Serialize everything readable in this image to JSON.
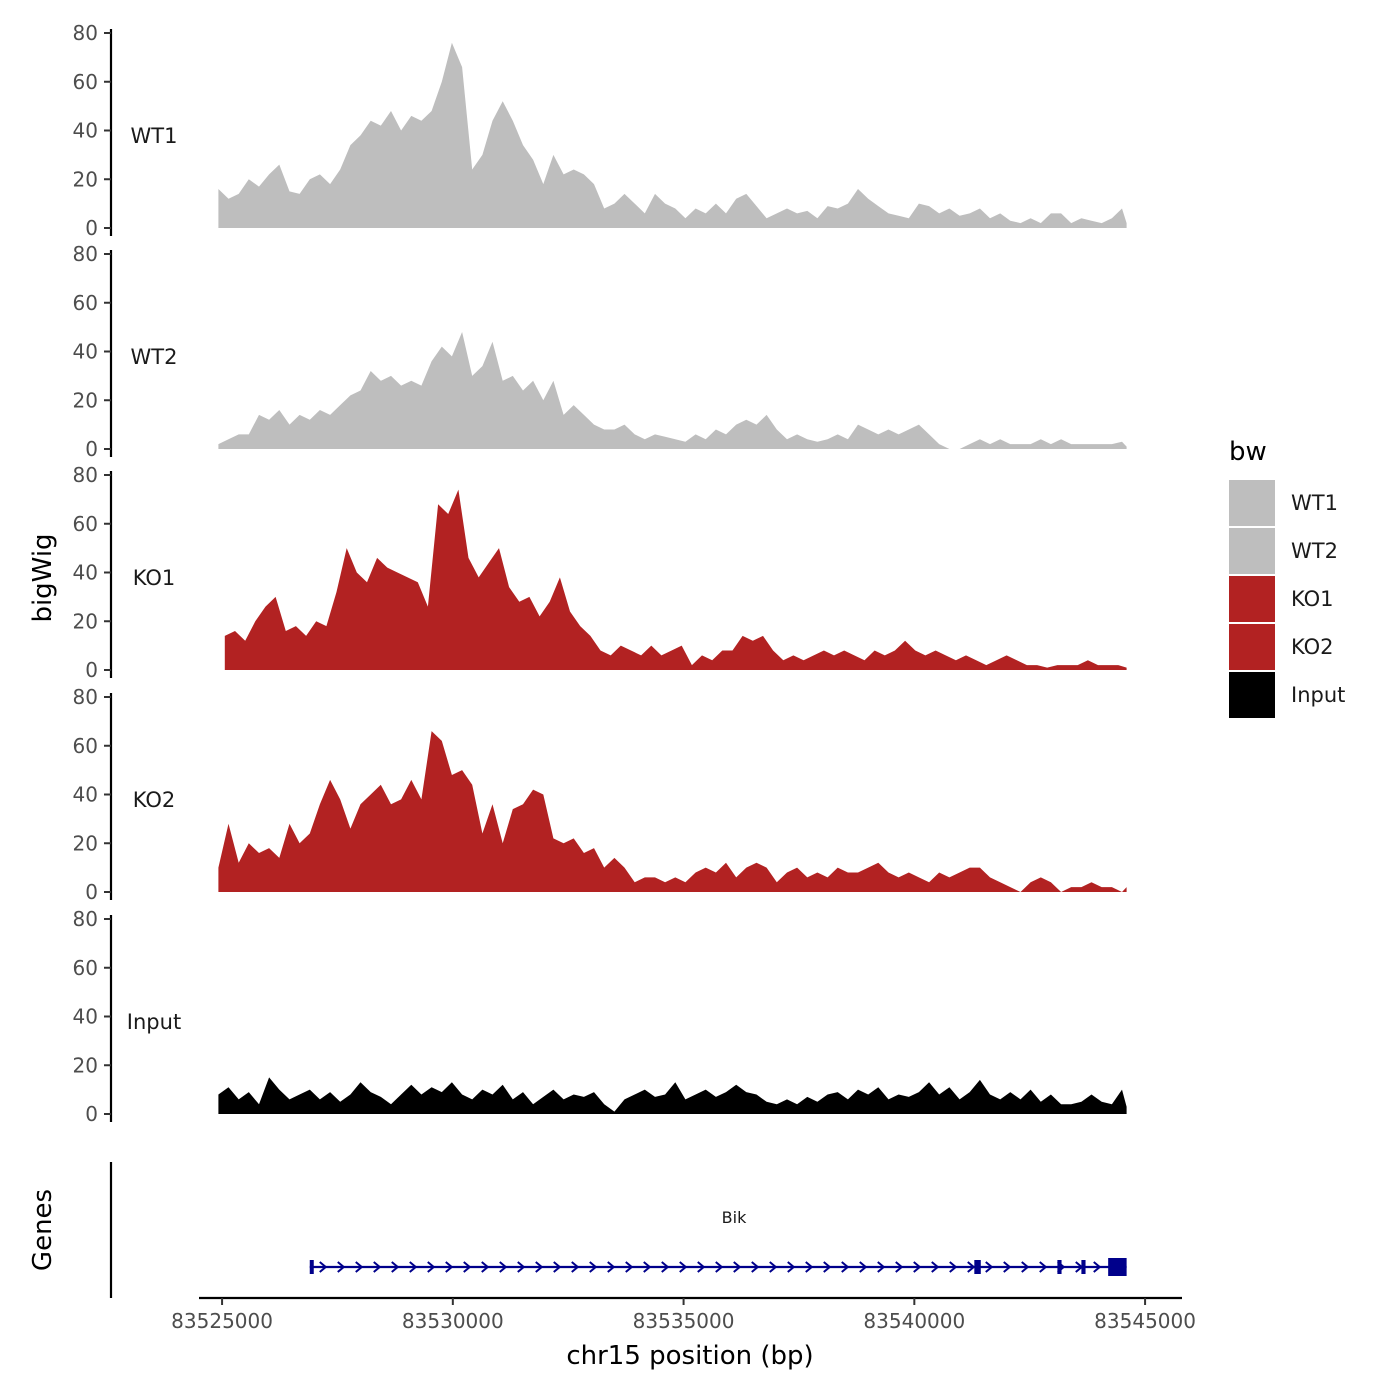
{
  "chart_data": {
    "type": "area",
    "title": "",
    "xlabel": "chr15 position (bp)",
    "ylabel": "bigWig",
    "genes_label": "Genes",
    "xlim": [
      83524500,
      83545800
    ],
    "ylim": [
      0,
      80
    ],
    "y_ticks": [
      "0",
      "20",
      "40",
      "60",
      "80"
    ],
    "x_ticks": [
      {
        "value": 83525000,
        "label": "83525000"
      },
      {
        "value": 83530000,
        "label": "83530000"
      },
      {
        "value": 83535000,
        "label": "83535000"
      },
      {
        "value": 83540000,
        "label": "83540000"
      },
      {
        "value": 83545000,
        "label": "83545000"
      }
    ],
    "legend": {
      "title": "bw",
      "position": "right",
      "entries": [
        {
          "label": "WT1",
          "color": "#bebebe"
        },
        {
          "label": "WT2",
          "color": "#bebebe"
        },
        {
          "label": "KO1",
          "color": "#b22222"
        },
        {
          "label": "KO2",
          "color": "#b22222"
        },
        {
          "label": "Input",
          "color": "#000000"
        }
      ]
    },
    "series": [
      {
        "name": "WT1",
        "color": "#bebebe",
        "x": [
          83524920,
          83525140,
          83525360,
          83525580,
          83525800,
          83526020,
          83526240,
          83526460,
          83526680,
          83526900,
          83527120,
          83527340,
          83527560,
          83527780,
          83528000,
          83528220,
          83528440,
          83528660,
          83528880,
          83529100,
          83529320,
          83529540,
          83529760,
          83529980,
          83530200,
          83530420,
          83530640,
          83530860,
          83531080,
          83531300,
          83531520,
          83531740,
          83531960,
          83532180,
          83532400,
          83532620,
          83532840,
          83533060,
          83533280,
          83533500,
          83533720,
          83533940,
          83534160,
          83534380,
          83534600,
          83534820,
          83535040,
          83535260,
          83535480,
          83535700,
          83535920,
          83536140,
          83536360,
          83536580,
          83536800,
          83537020,
          83537240,
          83537460,
          83537680,
          83537900,
          83538120,
          83538340,
          83538560,
          83538780,
          83539000,
          83539220,
          83539440,
          83539660,
          83539880,
          83540100,
          83540320,
          83540540,
          83540760,
          83540980,
          83541200,
          83541420,
          83541640,
          83541860,
          83542080,
          83542300,
          83542520,
          83542740,
          83542960,
          83543180,
          83543400,
          83543620,
          83543840,
          83544060,
          83544280,
          83544500,
          83544600
        ],
        "values": [
          16,
          12,
          14,
          20,
          17,
          22,
          26,
          15,
          14,
          20,
          22,
          18,
          24,
          34,
          38,
          44,
          42,
          48,
          40,
          46,
          44,
          48,
          60,
          76,
          66,
          24,
          30,
          44,
          52,
          44,
          34,
          28,
          18,
          30,
          22,
          24,
          22,
          18,
          8,
          10,
          14,
          10,
          6,
          14,
          10,
          8,
          4,
          8,
          6,
          10,
          6,
          12,
          14,
          9,
          4,
          6,
          8,
          6,
          7,
          4,
          9,
          8,
          10,
          16,
          12,
          9,
          6,
          5,
          4,
          10,
          9,
          6,
          8,
          5,
          6,
          8,
          4,
          6,
          3,
          2,
          4,
          2,
          6,
          6,
          2,
          4,
          3,
          2,
          4,
          8,
          2
        ]
      },
      {
        "name": "WT2",
        "color": "#bebebe",
        "x": [
          83524920,
          83525140,
          83525360,
          83525580,
          83525800,
          83526020,
          83526240,
          83526460,
          83526680,
          83526900,
          83527120,
          83527340,
          83527560,
          83527780,
          83528000,
          83528220,
          83528440,
          83528660,
          83528880,
          83529100,
          83529320,
          83529540,
          83529760,
          83529980,
          83530200,
          83530420,
          83530640,
          83530860,
          83531080,
          83531300,
          83531520,
          83531740,
          83531960,
          83532180,
          83532400,
          83532620,
          83532840,
          83533060,
          83533280,
          83533500,
          83533720,
          83533940,
          83534160,
          83534380,
          83534600,
          83534820,
          83535040,
          83535260,
          83535480,
          83535700,
          83535920,
          83536140,
          83536360,
          83536580,
          83536800,
          83537020,
          83537240,
          83537460,
          83537680,
          83537900,
          83538120,
          83538340,
          83538560,
          83538780,
          83539000,
          83539220,
          83539440,
          83539660,
          83539880,
          83540100,
          83540320,
          83540540,
          83540760,
          83540980,
          83541200,
          83541420,
          83541640,
          83541860,
          83542080,
          83542300,
          83542520,
          83542740,
          83542960,
          83543180,
          83543400,
          83543620,
          83543840,
          83544060,
          83544280,
          83544500,
          83544600
        ],
        "values": [
          2,
          4,
          6,
          6,
          14,
          12,
          16,
          10,
          14,
          12,
          16,
          14,
          18,
          22,
          24,
          32,
          28,
          30,
          26,
          28,
          26,
          36,
          42,
          38,
          48,
          30,
          34,
          44,
          28,
          30,
          24,
          28,
          20,
          28,
          14,
          18,
          14,
          10,
          8,
          8,
          10,
          6,
          4,
          6,
          5,
          4,
          3,
          6,
          4,
          8,
          6,
          10,
          12,
          10,
          14,
          8,
          4,
          6,
          4,
          3,
          4,
          6,
          4,
          10,
          8,
          6,
          8,
          6,
          8,
          10,
          6,
          2,
          0,
          0,
          2,
          4,
          2,
          4,
          2,
          2,
          2,
          4,
          2,
          4,
          2,
          2,
          2,
          2,
          2,
          3,
          1
        ]
      },
      {
        "name": "KO1",
        "color": "#b22222",
        "x": [
          83525060,
          83525280,
          83525500,
          83525720,
          83525940,
          83526160,
          83526380,
          83526600,
          83526820,
          83527040,
          83527260,
          83527480,
          83527700,
          83527920,
          83528140,
          83528360,
          83528580,
          83528800,
          83529020,
          83529240,
          83529460,
          83529680,
          83529900,
          83530120,
          83530340,
          83530560,
          83530780,
          83531000,
          83531220,
          83531440,
          83531660,
          83531880,
          83532100,
          83532320,
          83532540,
          83532760,
          83532980,
          83533200,
          83533420,
          83533640,
          83533860,
          83534080,
          83534300,
          83534520,
          83534740,
          83534960,
          83535180,
          83535400,
          83535620,
          83535840,
          83536060,
          83536280,
          83536500,
          83536720,
          83536940,
          83537160,
          83537380,
          83537600,
          83537820,
          83538040,
          83538260,
          83538480,
          83538700,
          83538920,
          83539140,
          83539360,
          83539580,
          83539800,
          83540020,
          83540240,
          83540460,
          83540680,
          83540900,
          83541120,
          83541340,
          83541560,
          83541780,
          83542000,
          83542220,
          83542440,
          83542660,
          83542880,
          83543100,
          83543320,
          83543540,
          83543760,
          83543980,
          83544200,
          83544420,
          83544600
        ],
        "values": [
          14,
          16,
          12,
          20,
          26,
          30,
          16,
          18,
          14,
          20,
          18,
          32,
          50,
          40,
          36,
          46,
          42,
          40,
          38,
          36,
          26,
          68,
          64,
          74,
          46,
          38,
          44,
          50,
          34,
          28,
          30,
          22,
          28,
          38,
          24,
          18,
          14,
          8,
          6,
          10,
          8,
          6,
          10,
          6,
          8,
          10,
          2,
          6,
          4,
          8,
          8,
          14,
          12,
          14,
          8,
          4,
          6,
          4,
          6,
          8,
          6,
          8,
          6,
          4,
          8,
          6,
          8,
          12,
          8,
          6,
          8,
          6,
          4,
          6,
          4,
          2,
          4,
          6,
          4,
          2,
          2,
          1,
          2,
          2,
          2,
          4,
          2,
          2,
          2,
          1
        ]
      },
      {
        "name": "KO2",
        "color": "#b22222",
        "x": [
          83524920,
          83525140,
          83525360,
          83525580,
          83525800,
          83526020,
          83526240,
          83526460,
          83526680,
          83526900,
          83527120,
          83527340,
          83527560,
          83527780,
          83528000,
          83528220,
          83528440,
          83528660,
          83528880,
          83529100,
          83529320,
          83529540,
          83529760,
          83529980,
          83530200,
          83530420,
          83530640,
          83530860,
          83531080,
          83531300,
          83531520,
          83531740,
          83531960,
          83532180,
          83532400,
          83532620,
          83532840,
          83533060,
          83533280,
          83533500,
          83533720,
          83533940,
          83534160,
          83534380,
          83534600,
          83534820,
          83535040,
          83535260,
          83535480,
          83535700,
          83535920,
          83536140,
          83536360,
          83536580,
          83536800,
          83537020,
          83537240,
          83537460,
          83537680,
          83537900,
          83538120,
          83538340,
          83538560,
          83538780,
          83539000,
          83539220,
          83539440,
          83539660,
          83539880,
          83540100,
          83540320,
          83540540,
          83540760,
          83540980,
          83541200,
          83541420,
          83541640,
          83541860,
          83542080,
          83542300,
          83542520,
          83542740,
          83542960,
          83543180,
          83543400,
          83543620,
          83543840,
          83544060,
          83544280,
          83544500,
          83544600
        ],
        "values": [
          10,
          28,
          12,
          20,
          16,
          18,
          14,
          28,
          20,
          24,
          36,
          46,
          38,
          26,
          36,
          40,
          44,
          36,
          38,
          46,
          38,
          66,
          62,
          48,
          50,
          44,
          24,
          36,
          20,
          34,
          36,
          42,
          40,
          22,
          20,
          22,
          16,
          18,
          10,
          14,
          10,
          4,
          6,
          6,
          4,
          6,
          4,
          8,
          10,
          8,
          12,
          6,
          10,
          12,
          10,
          4,
          8,
          10,
          6,
          8,
          6,
          10,
          8,
          8,
          10,
          12,
          8,
          6,
          8,
          6,
          4,
          8,
          6,
          8,
          10,
          10,
          6,
          4,
          2,
          0,
          4,
          6,
          4,
          0,
          2,
          2,
          4,
          2,
          2,
          0,
          2
        ]
      },
      {
        "name": "Input",
        "color": "#000000",
        "x": [
          83524920,
          83525140,
          83525360,
          83525580,
          83525800,
          83526020,
          83526240,
          83526460,
          83526680,
          83526900,
          83527120,
          83527340,
          83527560,
          83527780,
          83528000,
          83528220,
          83528440,
          83528660,
          83528880,
          83529100,
          83529320,
          83529540,
          83529760,
          83529980,
          83530200,
          83530420,
          83530640,
          83530860,
          83531080,
          83531300,
          83531520,
          83531740,
          83531960,
          83532180,
          83532400,
          83532620,
          83532840,
          83533060,
          83533280,
          83533500,
          83533720,
          83533940,
          83534160,
          83534380,
          83534600,
          83534820,
          83535040,
          83535260,
          83535480,
          83535700,
          83535920,
          83536140,
          83536360,
          83536580,
          83536800,
          83537020,
          83537240,
          83537460,
          83537680,
          83537900,
          83538120,
          83538340,
          83538560,
          83538780,
          83539000,
          83539220,
          83539440,
          83539660,
          83539880,
          83540100,
          83540320,
          83540540,
          83540760,
          83540980,
          83541200,
          83541420,
          83541640,
          83541860,
          83542080,
          83542300,
          83542520,
          83542740,
          83542960,
          83543180,
          83543400,
          83543620,
          83543840,
          83544060,
          83544280,
          83544500,
          83544600
        ],
        "values": [
          8,
          11,
          6,
          9,
          4,
          15,
          10,
          6,
          8,
          10,
          6,
          9,
          5,
          8,
          13,
          9,
          7,
          4,
          8,
          12,
          8,
          11,
          9,
          13,
          8,
          6,
          10,
          8,
          12,
          6,
          9,
          4,
          7,
          10,
          6,
          8,
          7,
          9,
          4,
          1,
          6,
          8,
          10,
          7,
          8,
          13,
          6,
          8,
          10,
          7,
          9,
          12,
          9,
          8,
          5,
          4,
          6,
          4,
          7,
          5,
          8,
          9,
          6,
          10,
          8,
          11,
          6,
          8,
          7,
          9,
          13,
          8,
          11,
          6,
          9,
          14,
          8,
          6,
          9,
          6,
          10,
          5,
          8,
          4,
          4,
          5,
          8,
          5,
          4,
          10,
          3
        ]
      }
    ],
    "gene": {
      "name": "Bik",
      "start": 83526900,
      "end": 83544600,
      "strand": "+",
      "exons": [
        [
          83526900,
          83526960
        ],
        [
          83541300,
          83541440
        ],
        [
          83543100,
          83543190
        ],
        [
          83543620,
          83543710
        ],
        [
          83544200,
          83544600
        ]
      ]
    }
  }
}
